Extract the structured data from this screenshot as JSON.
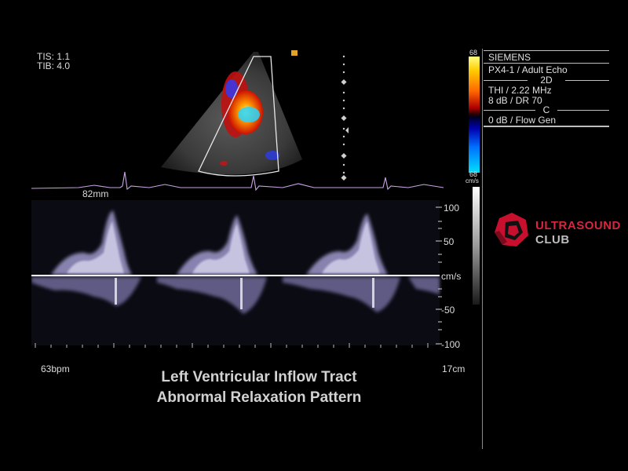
{
  "readouts": {
    "tis": "TIS: 1.1",
    "tib": "TIB: 4.0",
    "depth_mm": "82mm",
    "heart_rate": "63bpm",
    "depth_cm": "17cm"
  },
  "caption": {
    "line1": "Left Ventricular Inflow Tract",
    "line2": "Abnormal Relaxation Pattern"
  },
  "color_bar": {
    "top": "68",
    "bottom": "68",
    "unit": "cm/s"
  },
  "scale": {
    "labels": [
      "100",
      "50",
      "cm/s",
      "-50",
      "-100"
    ]
  },
  "system_panel": {
    "vendor": "SIEMENS",
    "probe": "PX4-1 / Adult Echo",
    "mode_2d": "2D",
    "thi": "THI / 2.22 MHz",
    "dr": "8 dB / DR 70",
    "mode_c": "C",
    "flow": "0 dB / Flow Gen"
  },
  "logo": {
    "line1": "ULTRASOUND",
    "line2": "CLUB"
  },
  "colors": {
    "ecg": "#c9a3e6",
    "logo_red": "#d7263d",
    "text": "#d8d8d8"
  }
}
